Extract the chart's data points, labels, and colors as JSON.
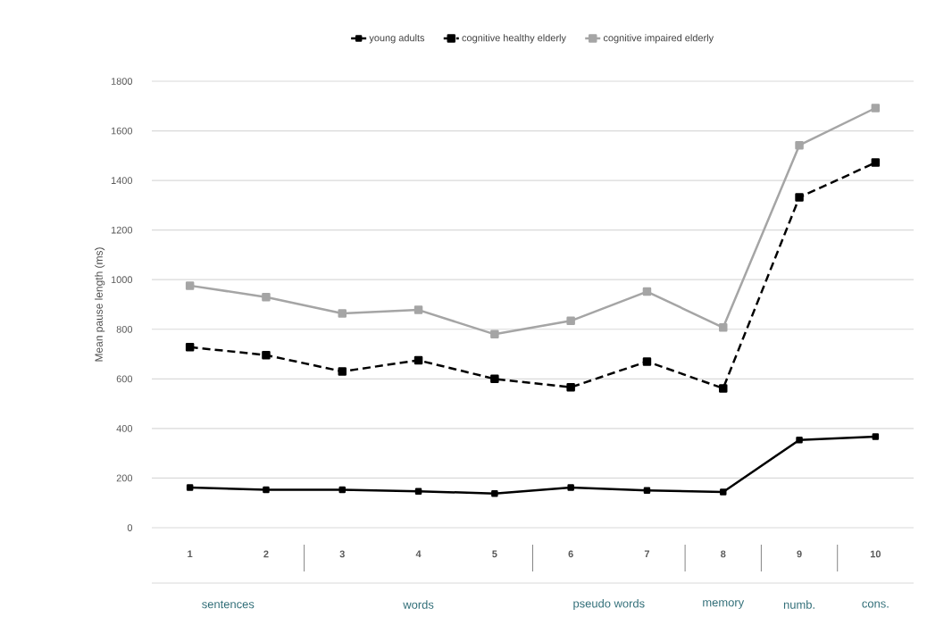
{
  "chart_data": {
    "type": "line",
    "ylabel": "Mean pause length (ms)",
    "categories": [
      "1",
      "2",
      "3",
      "4",
      "5",
      "6",
      "7",
      "8",
      "9",
      "10"
    ],
    "series": [
      {
        "name": "young adults",
        "color": "#000000",
        "line_style": "solid",
        "values": [
          162,
          153,
          153,
          147,
          138,
          162,
          150,
          144,
          354,
          367
        ]
      },
      {
        "name": "cognitive healthy elderly",
        "color": "#000000",
        "line_style": "dashed",
        "values": [
          728,
          696,
          630,
          675,
          600,
          566,
          670,
          562,
          1332,
          1472
        ]
      },
      {
        "name": "cognitive impaired elderly",
        "color": "#a5a5a5",
        "line_style": "solid",
        "values": [
          976,
          930,
          864,
          878,
          780,
          834,
          952,
          807,
          1542,
          1692
        ]
      }
    ],
    "ylim": [
      0,
      1800
    ],
    "yticks": [
      0,
      200,
      400,
      600,
      800,
      1000,
      1200,
      1400,
      1600,
      1800
    ],
    "grid": "y",
    "legend": "top",
    "marker": "square",
    "annotations": [
      "sentences",
      "words",
      "pseudo words",
      "memory",
      "numb.",
      "cons."
    ]
  }
}
